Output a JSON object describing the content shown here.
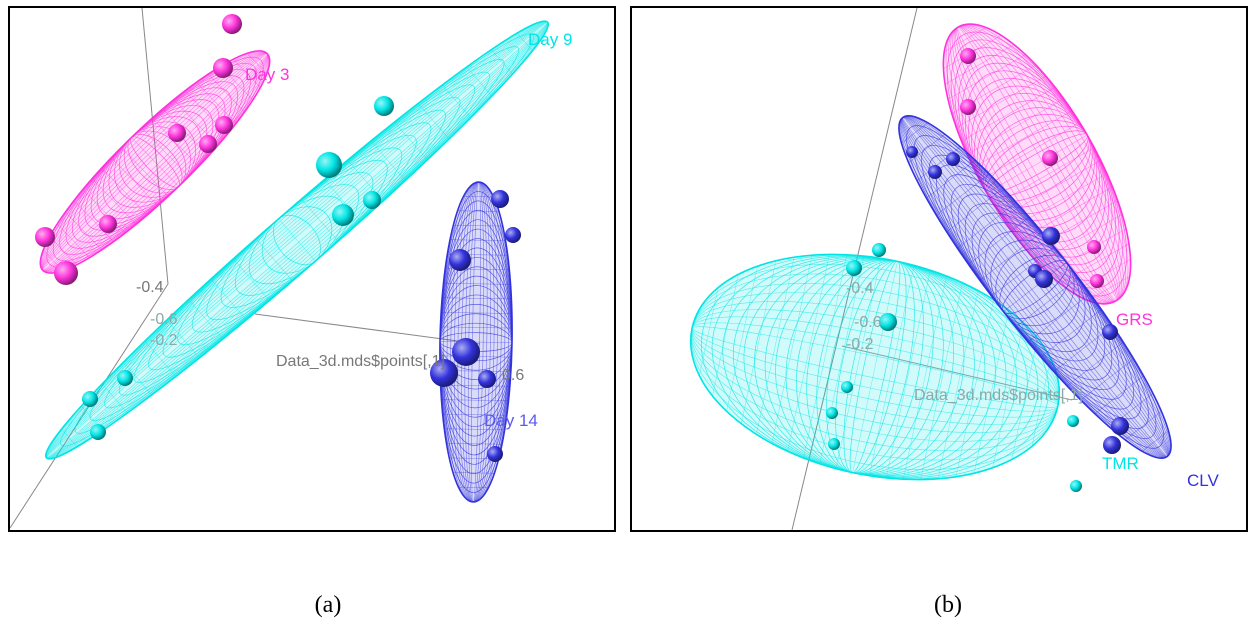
{
  "chart_data": [
    {
      "type": "scatter",
      "panel": "(a)",
      "axis_labels": [
        "-0.4",
        "-0.6",
        "-0.2",
        "0.6"
      ],
      "xlabel": "Data_3d.mds$points[,1]",
      "groups": [
        {
          "name": "Day 3",
          "color": "#ff33dd"
        },
        {
          "name": "Day 9",
          "color": "#00e5e5"
        },
        {
          "name": "Day 14",
          "color": "#3333dd"
        }
      ]
    },
    {
      "type": "scatter",
      "panel": "(b)",
      "axis_labels": [
        "-0.4",
        "-0.6",
        "-0.2"
      ],
      "xlabel": "Data_3d.mds$points[,1]",
      "groups": [
        {
          "name": "GRS",
          "color": "#ff33dd"
        },
        {
          "name": "TMR",
          "color": "#00e5e5"
        },
        {
          "name": "CLV",
          "color": "#3333dd"
        }
      ]
    }
  ],
  "captions": {
    "a": "(a)",
    "b": "(b)"
  }
}
